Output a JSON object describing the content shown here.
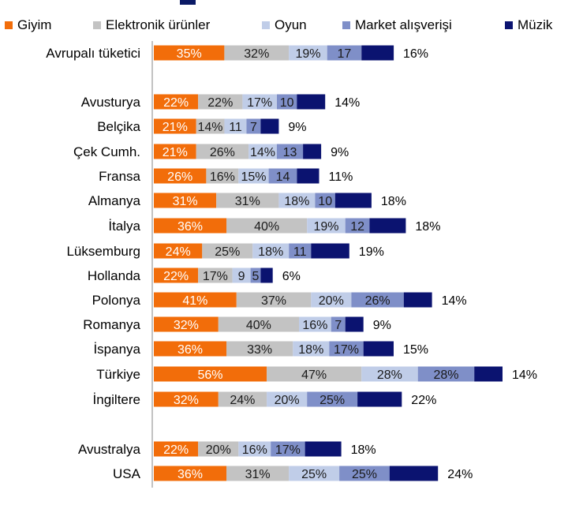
{
  "colors": {
    "Giyim": "#f26d0a",
    "Elektronik ürünler": "#c3c3c3",
    "Oyun": "#c0cde8",
    "Market alışverişi": "#7f8fc8",
    "Müzik": "#0b1370"
  },
  "chart_data": {
    "type": "bar",
    "orientation": "horizontal",
    "stacked": true,
    "title": "",
    "legend_position": "top",
    "series": [
      {
        "name": "Giyim",
        "labels": [
          "35%",
          "22%",
          "21%",
          "21%",
          "26%",
          "31%",
          "36%",
          "24%",
          "22%",
          "41%",
          "32%",
          "36%",
          "56%",
          "32%",
          "22%",
          "36%"
        ]
      },
      {
        "name": "Elektronik ürünler",
        "labels": [
          "32%",
          "22%",
          "14%",
          "26%",
          "16%",
          "31%",
          "40%",
          "25%",
          "17%",
          "37%",
          "40%",
          "33%",
          "47%",
          "24%",
          "20%",
          "31%"
        ]
      },
      {
        "name": "Oyun",
        "labels": [
          "19%",
          "17%",
          "11",
          "14%",
          "15%",
          "18%",
          "19%",
          "18%",
          "9",
          "20%",
          "16%",
          "18%",
          "28%",
          "20%",
          "16%",
          "25%"
        ]
      },
      {
        "name": "Market alışverişi",
        "labels": [
          "17",
          "10",
          "7",
          "13",
          "14",
          "10",
          "12",
          "11",
          "5",
          "26%",
          "7",
          "17%",
          "28%",
          "25%",
          "17%",
          "25%"
        ]
      },
      {
        "name": "Müzik",
        "labels": [
          "16%",
          "14%",
          "9%",
          "9%",
          "11%",
          "18%",
          "18%",
          "19%",
          "6%",
          "14%",
          "9%",
          "15%",
          "14%",
          "22%",
          "18%",
          "24%"
        ]
      }
    ],
    "categories": [
      "Avrupalı tüketici",
      "Avusturya",
      "Belçika",
      "Çek Cumh.",
      "Fransa",
      "Almanya",
      "İtalya",
      "Lüksemburg",
      "Hollanda",
      "Polonya",
      "Romanya",
      "İspanya",
      "Türkiye",
      "İngiltere",
      "Avustralya",
      "USA"
    ],
    "values": [
      [
        35,
        32,
        19,
        17,
        16
      ],
      [
        22,
        22,
        17,
        10,
        14
      ],
      [
        21,
        14,
        11,
        7,
        9
      ],
      [
        21,
        26,
        14,
        13,
        9
      ],
      [
        26,
        16,
        15,
        14,
        11
      ],
      [
        31,
        31,
        18,
        10,
        18
      ],
      [
        36,
        40,
        19,
        12,
        18
      ],
      [
        24,
        25,
        18,
        11,
        19
      ],
      [
        22,
        17,
        9,
        5,
        6
      ],
      [
        41,
        37,
        20,
        26,
        14
      ],
      [
        32,
        40,
        16,
        7,
        9
      ],
      [
        36,
        33,
        18,
        17,
        15
      ],
      [
        56,
        47,
        28,
        28,
        14
      ],
      [
        32,
        24,
        20,
        25,
        22
      ],
      [
        22,
        20,
        16,
        17,
        18
      ],
      [
        36,
        31,
        25,
        25,
        24
      ]
    ],
    "grid": false
  }
}
